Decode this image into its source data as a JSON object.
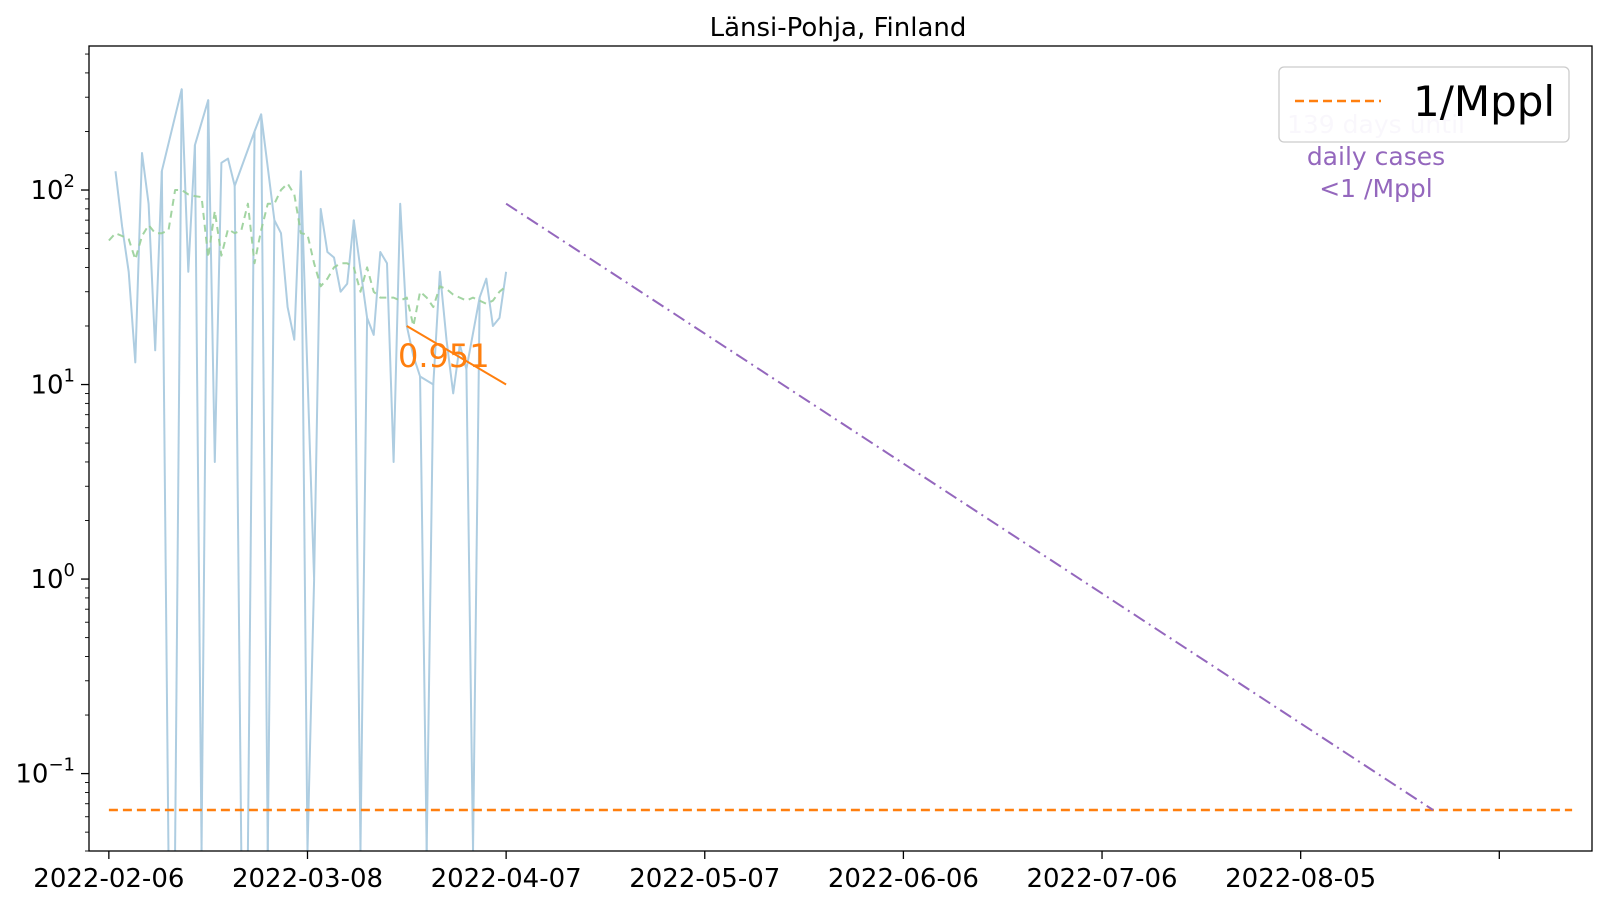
{
  "chart_data": {
    "type": "line",
    "title": "Länsi-Pohja, Finland",
    "xlabel": "",
    "ylabel": "",
    "y_scale": "log",
    "ylim": [
      0.04,
      550
    ],
    "xlim": [
      "2022-02-03",
      "2022-09-18"
    ],
    "grid": false,
    "x_ticks": [
      "2022-02-06",
      "2022-03-08",
      "2022-04-07",
      "2022-05-07",
      "2022-06-06",
      "2022-07-06",
      "2022-08-05",
      "2022-09-04"
    ],
    "x_tick_labels": [
      "2022-02-06",
      "2022-03-08",
      "2022-04-07",
      "2022-05-07",
      "2022-06-06",
      "2022-07-06",
      "2022-08-05",
      ""
    ],
    "y_ticks": [
      0.1,
      1,
      10,
      100
    ],
    "y_tick_labels": [
      {
        "base": "10",
        "exp": "−1"
      },
      {
        "base": "10",
        "exp": "0"
      },
      {
        "base": "10",
        "exp": "1"
      },
      {
        "base": "10",
        "exp": "2"
      }
    ],
    "colors": {
      "daily": "#aecde1",
      "smoothed": "#98cf98",
      "threshold": "#ff7f0e",
      "trend": "#ff7f0e",
      "projection": "#9467bd",
      "annotation_faint": "#e2d8ee"
    },
    "series": [
      {
        "name": "daily",
        "style": "solid",
        "x": [
          "2022-02-07",
          "2022-02-08",
          "2022-02-09",
          "2022-02-10",
          "2022-02-11",
          "2022-02-12",
          "2022-02-13",
          "2022-02-14",
          "2022-02-17",
          "2022-02-18",
          "2022-02-19",
          "2022-02-21",
          "2022-02-22",
          "2022-02-23",
          "2022-02-24",
          "2022-02-25",
          "2022-02-28",
          "2022-03-01",
          "2022-03-03",
          "2022-03-04",
          "2022-03-05",
          "2022-03-06",
          "2022-03-07",
          "2022-03-09",
          "2022-03-10",
          "2022-03-11",
          "2022-03-12",
          "2022-03-13",
          "2022-03-14",
          "2022-03-15",
          "2022-03-17",
          "2022-03-18",
          "2022-03-19",
          "2022-03-20",
          "2022-03-21",
          "2022-03-22",
          "2022-03-23",
          "2022-03-24",
          "2022-03-25",
          "2022-03-27",
          "2022-03-28",
          "2022-03-29",
          "2022-03-30",
          "2022-03-31",
          "2022-04-01",
          "2022-04-03",
          "2022-04-04",
          "2022-04-05",
          "2022-04-06",
          "2022-04-07"
        ],
        "y": [
          125,
          65,
          38,
          13,
          155,
          85,
          15,
          125,
          330,
          38,
          170,
          290,
          4,
          138,
          145,
          105,
          200,
          245,
          70,
          60,
          25,
          17,
          125,
          1.0,
          80,
          48,
          45,
          30,
          33,
          70,
          22,
          18,
          48,
          42,
          4,
          85,
          20,
          14,
          11,
          10,
          38,
          17,
          9,
          16,
          12,
          28,
          35,
          20,
          22,
          38
        ]
      },
      {
        "name": "smoothed",
        "style": "dashed",
        "x": [
          "2022-02-06",
          "2022-02-07",
          "2022-02-08",
          "2022-02-09",
          "2022-02-10",
          "2022-02-11",
          "2022-02-12",
          "2022-02-13",
          "2022-02-14",
          "2022-02-15",
          "2022-02-16",
          "2022-02-17",
          "2022-02-18",
          "2022-02-19",
          "2022-02-20",
          "2022-02-21",
          "2022-02-22",
          "2022-02-23",
          "2022-02-24",
          "2022-02-25",
          "2022-02-26",
          "2022-02-27",
          "2022-02-28",
          "2022-03-01",
          "2022-03-02",
          "2022-03-03",
          "2022-03-04",
          "2022-03-05",
          "2022-03-06",
          "2022-03-07",
          "2022-03-08",
          "2022-03-09",
          "2022-03-10",
          "2022-03-11",
          "2022-03-12",
          "2022-03-13",
          "2022-03-14",
          "2022-03-15",
          "2022-03-16",
          "2022-03-17",
          "2022-03-18",
          "2022-03-19",
          "2022-03-20",
          "2022-03-21",
          "2022-03-22",
          "2022-03-23",
          "2022-03-24",
          "2022-03-25",
          "2022-03-26",
          "2022-03-27",
          "2022-03-28",
          "2022-03-29",
          "2022-03-30",
          "2022-03-31",
          "2022-04-01",
          "2022-04-02",
          "2022-04-03",
          "2022-04-04",
          "2022-04-05",
          "2022-04-06",
          "2022-04-07"
        ],
        "y": [
          55,
          60,
          58,
          56,
          44,
          58,
          66,
          60,
          60,
          62,
          100,
          100,
          95,
          93,
          92,
          45,
          78,
          46,
          63,
          60,
          62,
          85,
          42,
          62,
          85,
          85,
          100,
          108,
          95,
          60,
          59,
          42,
          32,
          35,
          40,
          42,
          42,
          40,
          30,
          40,
          30,
          28,
          28,
          28,
          27,
          28,
          20,
          30,
          28,
          25,
          32,
          31,
          29,
          28,
          27,
          28,
          27,
          26,
          27,
          30,
          32
        ]
      },
      {
        "name": "1/Mppl",
        "style": "dashed",
        "x": [
          "2022-02-06",
          "2022-09-15"
        ],
        "y": [
          0.065,
          0.065
        ]
      },
      {
        "name": "trend",
        "style": "solid",
        "x": [
          "2022-03-23",
          "2022-04-07"
        ],
        "y": [
          20,
          10
        ]
      },
      {
        "name": "projection",
        "style": "dashdot",
        "x": [
          "2022-04-07",
          "2022-08-25"
        ],
        "y": [
          85,
          0.065
        ]
      }
    ],
    "legend": {
      "placement": "top-right",
      "entries": [
        {
          "label": "1/Mppl",
          "style": "dashed",
          "color": "#ff7f0e"
        }
      ]
    },
    "annotations": [
      {
        "text": "0.951",
        "color": "#ff7f0e",
        "x": "2022-03-31",
        "y": 14
      },
      {
        "lines": [
          "139 days until",
          "daily cases",
          "<1 /Mppl"
        ],
        "color": "#9467bd",
        "x": "2022-08-20",
        "y": 120
      }
    ]
  }
}
